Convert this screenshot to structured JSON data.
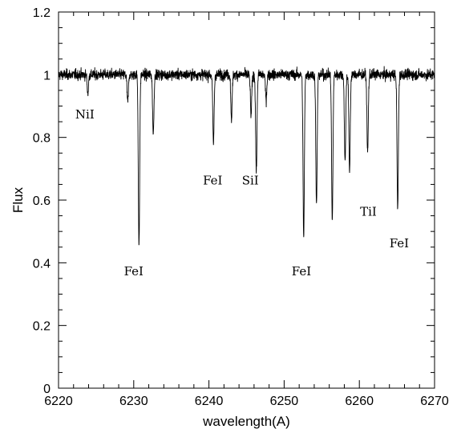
{
  "chart_data": {
    "type": "line",
    "xlabel": "wavelength(A)",
    "ylabel": "Flux",
    "xlim": [
      6220,
      6270
    ],
    "ylim": [
      0,
      1.2
    ],
    "x_ticks": [
      6220,
      6230,
      6240,
      6250,
      6260,
      6270
    ],
    "x_tick_labels": [
      "6220",
      "6230",
      "6240",
      "6250",
      "6260",
      "6270"
    ],
    "y_ticks": [
      0,
      0.2,
      0.4,
      0.6,
      0.8,
      1,
      1.2
    ],
    "y_tick_labels": [
      "0",
      "0.2",
      "0.4",
      "0.6",
      "0.8",
      "1",
      "1.2"
    ],
    "grid": false,
    "continuum": 1.0,
    "absorption_lines": [
      {
        "x": 6223.9,
        "depth": 0.06
      },
      {
        "x": 6229.2,
        "depth": 0.09
      },
      {
        "x": 6230.7,
        "depth": 0.55
      },
      {
        "x": 6232.6,
        "depth": 0.19
      },
      {
        "x": 6240.6,
        "depth": 0.22
      },
      {
        "x": 6243.0,
        "depth": 0.14
      },
      {
        "x": 6245.6,
        "depth": 0.13
      },
      {
        "x": 6246.3,
        "depth": 0.31
      },
      {
        "x": 6247.6,
        "depth": 0.08
      },
      {
        "x": 6252.6,
        "depth": 0.52
      },
      {
        "x": 6254.3,
        "depth": 0.42
      },
      {
        "x": 6256.4,
        "depth": 0.47
      },
      {
        "x": 6258.1,
        "depth": 0.28
      },
      {
        "x": 6258.7,
        "depth": 0.31
      },
      {
        "x": 6261.1,
        "depth": 0.25
      },
      {
        "x": 6265.1,
        "depth": 0.43
      }
    ],
    "annotations": [
      {
        "text": "NiI",
        "x": 6223.5,
        "y": 0.86
      },
      {
        "text": "FeI",
        "x": 6230.0,
        "y": 0.36
      },
      {
        "text": "FeI",
        "x": 6240.5,
        "y": 0.65
      },
      {
        "text": "SiI",
        "x": 6245.5,
        "y": 0.65
      },
      {
        "text": "FeI",
        "x": 6252.3,
        "y": 0.36
      },
      {
        "text": "TiI",
        "x": 6261.2,
        "y": 0.55
      },
      {
        "text": "FeI",
        "x": 6265.3,
        "y": 0.45
      }
    ]
  }
}
